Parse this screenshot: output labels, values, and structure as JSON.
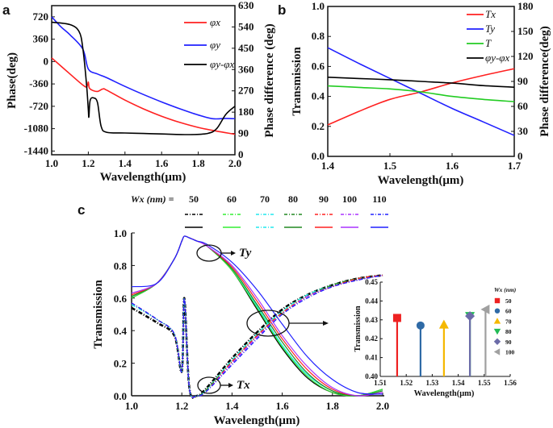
{
  "panels": {
    "a": "a",
    "b": "b",
    "c": "c"
  },
  "chart_data": [
    {
      "id": "a",
      "type": "line",
      "xlabel": "Wavelength(μm)",
      "ylabel": "Phase(deg)",
      "ylabel_right": "Phase difference (deg)",
      "xlim": [
        1.0,
        2.0
      ],
      "ylim": [
        -1500,
        900
      ],
      "ylim_right": [
        0,
        630
      ],
      "xticks": [
        "1.0",
        "1.2",
        "1.4",
        "1.6",
        "1.8",
        "2.0"
      ],
      "yticks": [
        "720",
        "360",
        "0",
        "-360",
        "-720",
        "-1080",
        "-1440"
      ],
      "yticks_right": [
        "0",
        "90",
        "180",
        "270",
        "360",
        "450",
        "540",
        "630"
      ],
      "legend_position": "top-right",
      "series": [
        {
          "name": "φx",
          "color": "#ff2020",
          "axis": "left",
          "x": [
            1.0,
            1.1,
            1.18,
            1.195,
            1.2,
            1.205,
            1.22,
            1.25,
            1.28,
            1.3,
            1.4,
            1.5,
            1.6,
            1.7,
            1.8,
            1.9,
            2.0
          ],
          "y": [
            60,
            -200,
            -400,
            -380,
            -330,
            -420,
            -460,
            -480,
            -440,
            -460,
            -620,
            -760,
            -880,
            -980,
            -1060,
            -1120,
            -1170
          ]
        },
        {
          "name": "φy",
          "color": "#2020ff",
          "axis": "left",
          "x": [
            1.0,
            1.05,
            1.1,
            1.17,
            1.2,
            1.25,
            1.3,
            1.4,
            1.5,
            1.6,
            1.7,
            1.8,
            1.88,
            1.95,
            2.0
          ],
          "y": [
            720,
            560,
            430,
            200,
            -120,
            -200,
            -260,
            -400,
            -530,
            -650,
            -760,
            -860,
            -920,
            -915,
            -920
          ]
        },
        {
          "name": "φy-φx",
          "color": "#000000",
          "axis": "right",
          "x": [
            1.0,
            1.1,
            1.15,
            1.17,
            1.19,
            1.2,
            1.203,
            1.21,
            1.23,
            1.25,
            1.27,
            1.3,
            1.4,
            1.5,
            1.6,
            1.75,
            1.85,
            1.9,
            1.95,
            2.0
          ],
          "y": [
            560,
            550,
            520,
            450,
            300,
            190,
            160,
            230,
            240,
            220,
            120,
            95,
            92,
            90,
            88,
            85,
            90,
            110,
            170,
            205
          ]
        }
      ]
    },
    {
      "id": "b",
      "type": "line",
      "xlabel": "Wavelength(μm)",
      "ylabel": "Transmission",
      "ylabel_right": "Phase difference(deg)",
      "xlim": [
        1.4,
        1.7
      ],
      "ylim": [
        0,
        1.0
      ],
      "ylim_right": [
        0,
        180
      ],
      "xticks": [
        "1.4",
        "1.5",
        "1.6",
        "1.7"
      ],
      "yticks": [
        "0.0",
        "0.2",
        "0.4",
        "0.6",
        "0.8",
        "1.0"
      ],
      "yticks_right": [
        "0",
        "30",
        "60",
        "90",
        "120",
        "150",
        "180"
      ],
      "legend_position": "top-right",
      "series": [
        {
          "name": "Tx",
          "color": "#ff2020",
          "axis": "left",
          "x": [
            1.4,
            1.45,
            1.5,
            1.55,
            1.6,
            1.65,
            1.7
          ],
          "y": [
            0.21,
            0.3,
            0.38,
            0.43,
            0.49,
            0.54,
            0.585
          ]
        },
        {
          "name": "Ty",
          "color": "#2020ff",
          "axis": "left",
          "x": [
            1.4,
            1.45,
            1.5,
            1.55,
            1.6,
            1.65,
            1.7
          ],
          "y": [
            0.725,
            0.62,
            0.52,
            0.42,
            0.32,
            0.23,
            0.14
          ]
        },
        {
          "name": "T",
          "color": "#22cc22",
          "axis": "left",
          "x": [
            1.4,
            1.45,
            1.5,
            1.55,
            1.6,
            1.65,
            1.7
          ],
          "y": [
            0.47,
            0.46,
            0.45,
            0.43,
            0.4,
            0.38,
            0.365
          ]
        },
        {
          "name": "φy-φx",
          "color": "#000000",
          "axis": "right",
          "x": [
            1.4,
            1.45,
            1.5,
            1.55,
            1.6,
            1.65,
            1.7
          ],
          "y": [
            95,
            93.5,
            92,
            90,
            88,
            85,
            83
          ]
        }
      ]
    },
    {
      "id": "c",
      "type": "line",
      "xlabel": "Wavelength(μm)",
      "ylabel": "Transmission",
      "xlim": [
        1.0,
        2.0
      ],
      "ylim": [
        0,
        1.0
      ],
      "xticks": [
        "1.0",
        "1.2",
        "1.4",
        "1.6",
        "1.8",
        "2.0"
      ],
      "yticks": [
        "0.0",
        "0.2",
        "0.4",
        "0.6",
        "0.8",
        "1.0"
      ],
      "legend_title": "Wx (nm) =",
      "annotations": [
        "Ty",
        "Tx"
      ],
      "x": [
        1.0,
        1.1,
        1.17,
        1.2,
        1.21,
        1.23,
        1.26,
        1.3,
        1.4,
        1.5,
        1.6,
        1.7,
        1.8,
        1.9,
        2.0
      ],
      "series": [
        {
          "name": "50",
          "color": "#000000",
          "Ty": [
            0.6,
            0.69,
            0.84,
            0.95,
            0.98,
            0.97,
            0.95,
            0.92,
            0.77,
            0.53,
            0.29,
            0.11,
            0.02,
            0.0,
            0.04
          ],
          "Tx": [
            0.54,
            0.45,
            0.37,
            0.15,
            0.6,
            0.05,
            0.0,
            0.05,
            0.23,
            0.39,
            0.53,
            0.62,
            0.68,
            0.72,
            0.74
          ]
        },
        {
          "name": "60",
          "color": "#33ee33",
          "Ty": [
            0.6,
            0.69,
            0.84,
            0.95,
            0.98,
            0.97,
            0.95,
            0.92,
            0.77,
            0.54,
            0.3,
            0.12,
            0.02,
            0.0,
            0.04
          ],
          "Tx": [
            0.56,
            0.47,
            0.38,
            0.15,
            0.6,
            0.05,
            0.0,
            0.04,
            0.22,
            0.38,
            0.52,
            0.62,
            0.68,
            0.72,
            0.74
          ]
        },
        {
          "name": "70",
          "color": "#22e8ee",
          "Ty": [
            0.61,
            0.69,
            0.84,
            0.95,
            0.98,
            0.97,
            0.95,
            0.92,
            0.78,
            0.55,
            0.31,
            0.13,
            0.03,
            0.0,
            0.03
          ],
          "Tx": [
            0.56,
            0.47,
            0.38,
            0.15,
            0.6,
            0.05,
            0.0,
            0.04,
            0.22,
            0.38,
            0.52,
            0.62,
            0.68,
            0.72,
            0.74
          ]
        },
        {
          "name": "80",
          "color": "#228822",
          "Ty": [
            0.61,
            0.69,
            0.84,
            0.95,
            0.98,
            0.97,
            0.95,
            0.92,
            0.78,
            0.56,
            0.33,
            0.14,
            0.03,
            0.0,
            0.03
          ],
          "Tx": [
            0.57,
            0.47,
            0.38,
            0.15,
            0.6,
            0.05,
            0.0,
            0.04,
            0.21,
            0.37,
            0.51,
            0.61,
            0.68,
            0.72,
            0.74
          ]
        },
        {
          "name": "90",
          "color": "#ff2020",
          "Ty": [
            0.62,
            0.69,
            0.84,
            0.95,
            0.98,
            0.97,
            0.95,
            0.92,
            0.79,
            0.58,
            0.35,
            0.16,
            0.04,
            0.0,
            0.02
          ],
          "Tx": [
            0.57,
            0.47,
            0.38,
            0.15,
            0.6,
            0.05,
            0.0,
            0.03,
            0.21,
            0.37,
            0.51,
            0.61,
            0.67,
            0.72,
            0.74
          ]
        },
        {
          "name": "100",
          "color": "#aa33ff",
          "Ty": [
            0.63,
            0.69,
            0.84,
            0.95,
            0.98,
            0.97,
            0.95,
            0.92,
            0.8,
            0.6,
            0.37,
            0.18,
            0.05,
            0.0,
            0.02
          ],
          "Tx": [
            0.57,
            0.47,
            0.38,
            0.15,
            0.6,
            0.05,
            0.0,
            0.03,
            0.2,
            0.36,
            0.5,
            0.61,
            0.67,
            0.71,
            0.74
          ]
        },
        {
          "name": "110",
          "color": "#2020ff",
          "Ty": [
            0.67,
            0.69,
            0.84,
            0.95,
            0.98,
            0.97,
            0.95,
            0.93,
            0.82,
            0.65,
            0.44,
            0.24,
            0.1,
            0.02,
            0.01
          ],
          "Tx": [
            0.57,
            0.47,
            0.38,
            0.15,
            0.6,
            0.05,
            0.0,
            0.03,
            0.19,
            0.35,
            0.5,
            0.6,
            0.67,
            0.71,
            0.74
          ]
        }
      ]
    },
    {
      "id": "c-inset",
      "type": "stem",
      "xlabel": "Wavelength(μm)",
      "ylabel": "Transmission",
      "xlim": [
        1.51,
        1.56
      ],
      "ylim": [
        0.4,
        0.45
      ],
      "xticks": [
        "1.51",
        "1.52",
        "1.53",
        "1.54",
        "1.55",
        "1.56"
      ],
      "yticks": [
        "0.40",
        "0.41",
        "0.42",
        "0.43",
        "0.44",
        "0.45"
      ],
      "legend_title": "Wx (nm)",
      "legend_position": "right",
      "series": [
        {
          "name": "50",
          "x": 1.5165,
          "y": 0.431,
          "color": "#ee2222",
          "marker": "square"
        },
        {
          "name": "60",
          "x": 1.5255,
          "y": 0.427,
          "color": "#2f6aa6",
          "marker": "circle"
        },
        {
          "name": "70",
          "x": 1.5345,
          "y": 0.4275,
          "color": "#f5b800",
          "marker": "triangle-up"
        },
        {
          "name": "80",
          "x": 1.5445,
          "y": 0.432,
          "color": "#22bb55",
          "marker": "triangle-down"
        },
        {
          "name": "90",
          "x": 1.5445,
          "y": 0.432,
          "color": "#6b6ba8",
          "marker": "diamond"
        },
        {
          "name": "100",
          "x": 1.5505,
          "y": 0.4355,
          "color": "#a0a0a0",
          "marker": "triangle-left"
        }
      ]
    }
  ]
}
